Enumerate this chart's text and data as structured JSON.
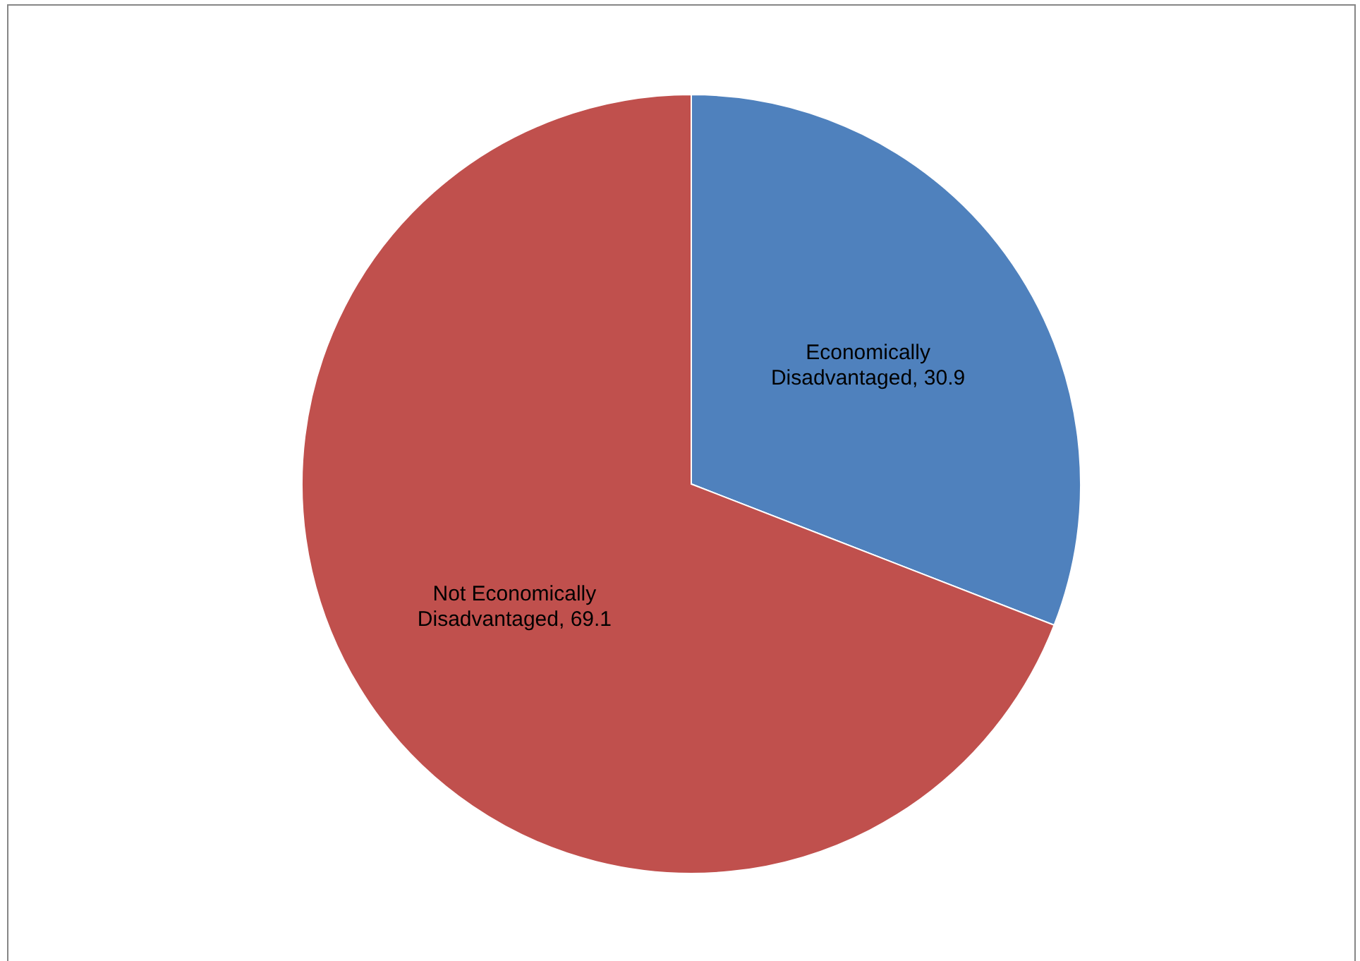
{
  "chart_data": {
    "type": "pie",
    "categories": [
      "Economically Disadvantaged",
      "Not Economically Disadvantaged"
    ],
    "values": [
      30.9,
      69.1
    ],
    "colors": [
      "#4f81bd",
      "#c0504d"
    ],
    "value_labels": [
      ", 30.9",
      ", 69.1"
    ]
  }
}
